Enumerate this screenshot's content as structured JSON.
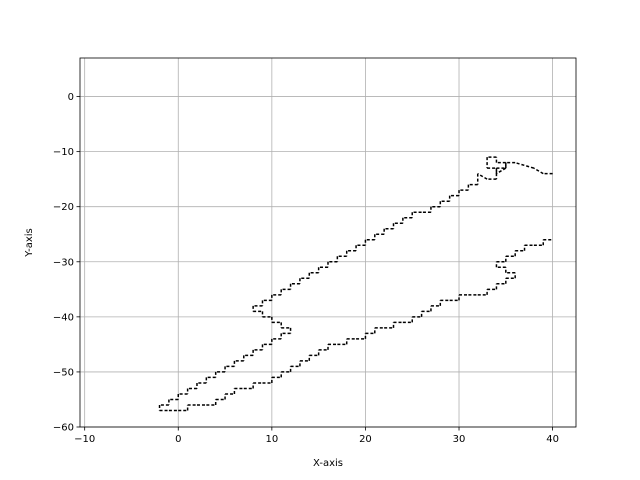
{
  "chart_data": {
    "type": "line",
    "title": "",
    "xlabel": "X-axis",
    "ylabel": "Y-axis",
    "xlim": [
      -10.5,
      42.5
    ],
    "ylim": [
      -60,
      7
    ],
    "grid": true,
    "line_style": "dashed",
    "line_color": "#000000",
    "xticks": [
      -10,
      0,
      10,
      20,
      30,
      40
    ],
    "yticks": [
      0,
      -10,
      -20,
      -30,
      -40,
      -50,
      -60
    ],
    "xtick_labels": [
      "−10",
      "0",
      "10",
      "20",
      "30",
      "40"
    ],
    "ytick_labels": [
      "0",
      "−10",
      "−20",
      "−30",
      "−40",
      "−50",
      "−60"
    ],
    "series": [
      {
        "x": [
          40,
          39,
          38,
          36,
          35,
          35,
          34,
          34,
          35,
          35,
          34,
          34,
          33,
          33,
          34,
          34,
          33,
          32,
          32,
          31,
          31,
          30,
          30,
          29,
          29,
          28,
          28,
          27,
          27,
          26,
          25,
          25,
          24,
          24,
          23,
          23,
          22,
          22,
          21,
          21,
          20,
          20,
          19,
          19,
          18,
          18,
          17,
          17,
          16,
          16,
          15,
          15,
          14,
          14,
          13,
          13,
          12,
          12,
          11,
          11,
          10,
          10,
          9,
          9,
          8,
          8,
          9,
          9,
          10,
          10,
          11,
          11,
          12,
          12,
          11,
          11,
          10,
          10,
          9,
          9,
          8,
          8,
          7,
          7,
          6,
          6,
          5,
          5,
          4,
          4,
          3,
          3,
          2,
          2,
          1,
          1,
          0,
          0,
          -1,
          -1,
          -2,
          -2,
          -1,
          0,
          1,
          1,
          2,
          3,
          4,
          4,
          5,
          5,
          6,
          6,
          7,
          8,
          8,
          9,
          10,
          10,
          11,
          11,
          12,
          12,
          13,
          13,
          14,
          14,
          15,
          15,
          16,
          16,
          17,
          18,
          18,
          19,
          20,
          20,
          21,
          21,
          22,
          23,
          23,
          24,
          25,
          25,
          26,
          26,
          27,
          27,
          28,
          28,
          29,
          30,
          30,
          31,
          32,
          33,
          33,
          34,
          34,
          35,
          35,
          36,
          36,
          35,
          35,
          34,
          34,
          35,
          35,
          36,
          36,
          37,
          37,
          38,
          39,
          39,
          40
        ],
        "y": [
          -14,
          -14,
          -13,
          -12,
          -12,
          -13,
          -14,
          -13,
          -13,
          -12,
          -12,
          -11,
          -11,
          -13,
          -13,
          -15,
          -15,
          -14,
          -16,
          -16,
          -17,
          -17,
          -18,
          -18,
          -19,
          -19,
          -20,
          -20,
          -21,
          -21,
          -21,
          -22,
          -22,
          -23,
          -23,
          -24,
          -24,
          -25,
          -25,
          -26,
          -26,
          -27,
          -27,
          -28,
          -28,
          -29,
          -29,
          -30,
          -30,
          -31,
          -31,
          -32,
          -32,
          -33,
          -33,
          -34,
          -34,
          -35,
          -35,
          -36,
          -36,
          -37,
          -37,
          -38,
          -38,
          -39,
          -39,
          -40,
          -40,
          -41,
          -41,
          -42,
          -42,
          -43,
          -43,
          -44,
          -44,
          -45,
          -45,
          -46,
          -46,
          -47,
          -47,
          -48,
          -48,
          -49,
          -49,
          -50,
          -50,
          -51,
          -51,
          -52,
          -52,
          -53,
          -53,
          -54,
          -54,
          -55,
          -55,
          -56,
          -56,
          -57,
          -57,
          -57,
          -57,
          -56,
          -56,
          -56,
          -56,
          -55,
          -55,
          -54,
          -54,
          -53,
          -53,
          -53,
          -52,
          -52,
          -52,
          -51,
          -51,
          -50,
          -50,
          -49,
          -49,
          -48,
          -48,
          -47,
          -47,
          -46,
          -46,
          -45,
          -45,
          -45,
          -44,
          -44,
          -44,
          -43,
          -43,
          -42,
          -42,
          -42,
          -41,
          -41,
          -41,
          -40,
          -40,
          -39,
          -39,
          -38,
          -38,
          -37,
          -37,
          -37,
          -36,
          -36,
          -36,
          -36,
          -35,
          -35,
          -34,
          -34,
          -33,
          -33,
          -32,
          -32,
          -31,
          -31,
          -30,
          -30,
          -29,
          -29,
          -28,
          -28,
          -27,
          -27,
          -27,
          -26,
          -26
        ]
      }
    ]
  }
}
